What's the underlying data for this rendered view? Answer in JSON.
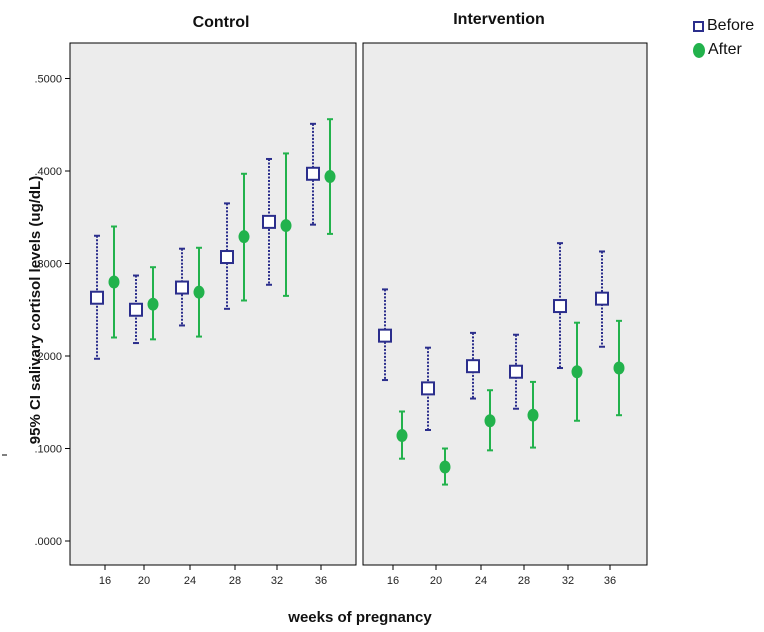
{
  "chart_data": {
    "type": "scatter",
    "subtype": "error-bar",
    "panels": [
      "Control",
      "Intervention"
    ],
    "categories": [
      "16",
      "20",
      "24",
      "28",
      "32",
      "36"
    ],
    "xlabel": "weeks of pregnancy",
    "ylabel": "95% CI salivary cortisol levels (ug/dL)",
    "ylim": [
      0,
      0.52
    ],
    "yticks": [
      ".0000",
      ".1000",
      ".2000",
      ".3000",
      ".4000",
      ".5000"
    ],
    "ytick_values": [
      0,
      0.1,
      0.2,
      0.3,
      0.4,
      0.5
    ],
    "legend_position": "top-right, outside",
    "series": [
      {
        "name": "Before",
        "marker": "square",
        "color": "#2b2e8c",
        "panels": {
          "Control": {
            "mean": [
              0.263,
              0.25,
              0.274,
              0.307,
              0.345,
              0.397
            ],
            "lower": [
              0.197,
              0.214,
              0.233,
              0.251,
              0.277,
              0.342
            ],
            "upper": [
              0.33,
              0.287,
              0.316,
              0.365,
              0.413,
              0.451
            ]
          },
          "Intervention": {
            "mean": [
              0.222,
              0.165,
              0.189,
              0.183,
              0.254,
              0.262
            ],
            "lower": [
              0.174,
              0.12,
              0.154,
              0.143,
              0.187,
              0.21
            ],
            "upper": [
              0.272,
              0.209,
              0.225,
              0.223,
              0.322,
              0.313
            ]
          }
        }
      },
      {
        "name": "After",
        "marker": "circle",
        "color": "#22b24c",
        "panels": {
          "Control": {
            "mean": [
              0.28,
              0.256,
              0.269,
              0.329,
              0.341,
              0.394
            ],
            "lower": [
              0.22,
              0.218,
              0.221,
              0.26,
              0.265,
              0.332
            ],
            "upper": [
              0.34,
              0.296,
              0.317,
              0.397,
              0.419,
              0.456
            ]
          },
          "Intervention": {
            "mean": [
              0.114,
              0.08,
              0.13,
              0.136,
              0.183,
              0.187
            ],
            "lower": [
              0.089,
              0.061,
              0.098,
              0.101,
              0.13,
              0.136
            ],
            "upper": [
              0.14,
              0.1,
              0.163,
              0.172,
              0.236,
              0.238
            ]
          }
        }
      }
    ]
  }
}
